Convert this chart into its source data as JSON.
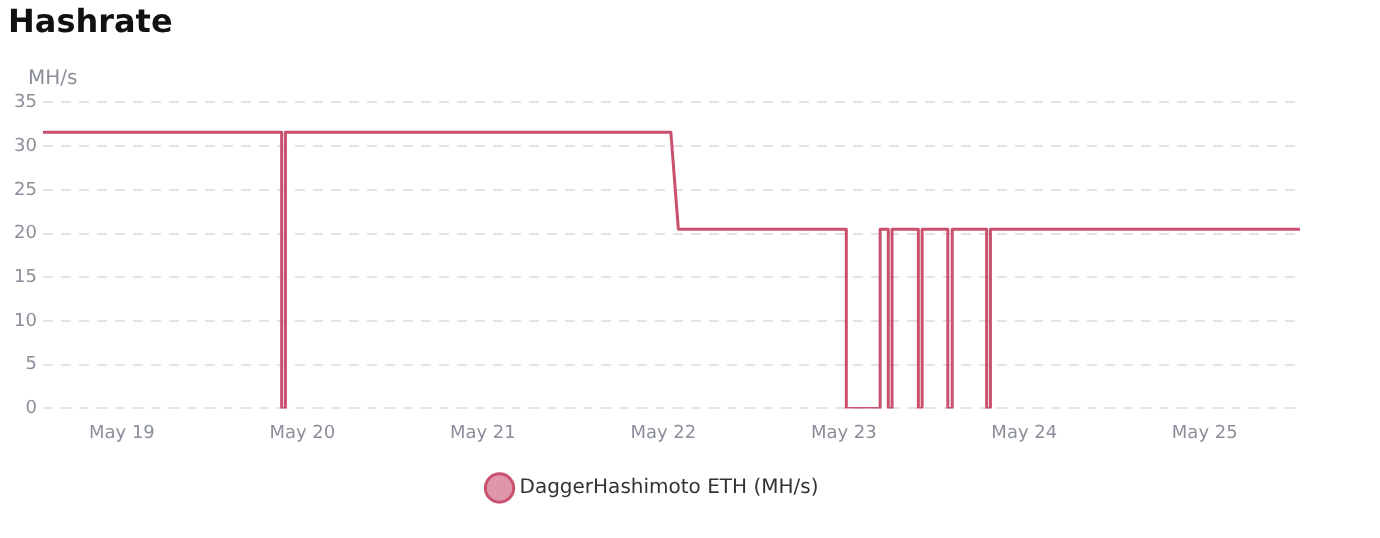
{
  "chart_data": {
    "type": "line",
    "title": "Hashrate",
    "ylabel": "MH/s",
    "x": [
      "--05-18T13:30",
      "--05-19T21:15",
      "--05-19T21:15",
      "--05-19T21:45",
      "--05-19T21:45",
      "--05-22T01:00",
      "--05-22T02:00",
      "--05-23T00:20",
      "--05-23T00:20",
      "--05-23T04:50",
      "--05-23T04:50",
      "--05-23T05:55",
      "--05-23T05:55",
      "--05-23T06:25",
      "--05-23T06:25",
      "--05-23T09:55",
      "--05-23T09:55",
      "--05-23T10:25",
      "--05-23T10:25",
      "--05-23T13:50",
      "--05-23T13:50",
      "--05-23T14:25",
      "--05-23T14:25",
      "--05-23T19:00",
      "--05-23T19:00",
      "--05-23T19:30",
      "--05-23T19:30",
      "--05-25T12:40"
    ],
    "series": [
      {
        "name": "DaggerHashimoto ETH (MH/s)",
        "color": "#c9506f",
        "values": [
          31.6,
          31.6,
          0,
          0,
          31.6,
          31.6,
          20.5,
          20.5,
          0,
          0,
          20.5,
          20.5,
          0,
          0,
          20.5,
          20.5,
          0,
          0,
          20.5,
          20.5,
          0,
          0,
          20.5,
          20.5,
          0,
          0,
          20.5,
          20.5
        ]
      }
    ],
    "xlim": [
      "--05-18T13:30",
      "--05-25T12:40"
    ],
    "xticks": [
      {
        "value": "--05-19",
        "label": "May 19"
      },
      {
        "value": "--05-20",
        "label": "May 20"
      },
      {
        "value": "--05-21",
        "label": "May 21"
      },
      {
        "value": "--05-22",
        "label": "May 22"
      },
      {
        "value": "--05-23",
        "label": "May 23"
      },
      {
        "value": "--05-24",
        "label": "May 24"
      },
      {
        "value": "--05-25",
        "label": "May 25"
      }
    ],
    "ylim": [
      0,
      35
    ],
    "yticks": [
      0,
      5,
      10,
      15,
      20,
      25,
      30,
      35
    ],
    "grid": "y",
    "legend": "bottom",
    "marker": "none",
    "line_style": "solid"
  }
}
